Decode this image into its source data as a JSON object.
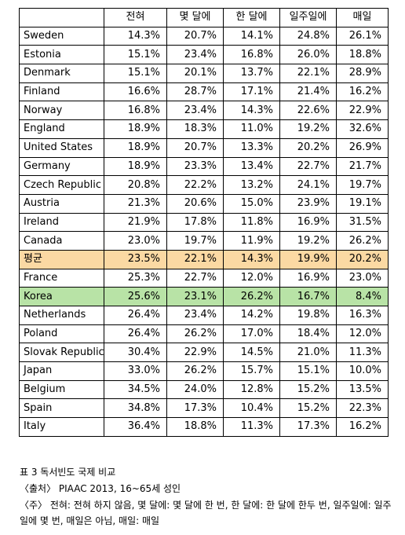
{
  "table": {
    "headers": [
      "",
      "전혀",
      "몇 달에",
      "한 달에",
      "일주일에",
      "매일"
    ],
    "rows": [
      {
        "country": "Sweden",
        "values": [
          "14.3%",
          "20.7%",
          "14.1%",
          "24.8%",
          "26.1%"
        ]
      },
      {
        "country": "Estonia",
        "values": [
          "15.1%",
          "23.4%",
          "16.8%",
          "26.0%",
          "18.8%"
        ]
      },
      {
        "country": "Denmark",
        "values": [
          "15.1%",
          "20.1%",
          "13.7%",
          "22.1%",
          "28.9%"
        ]
      },
      {
        "country": "Finland",
        "values": [
          "16.6%",
          "28.7%",
          "17.1%",
          "21.4%",
          "16.2%"
        ]
      },
      {
        "country": "Norway",
        "values": [
          "16.8%",
          "23.4%",
          "14.3%",
          "22.6%",
          "22.9%"
        ]
      },
      {
        "country": "England",
        "values": [
          "18.9%",
          "18.3%",
          "11.0%",
          "19.2%",
          "32.6%"
        ]
      },
      {
        "country": "United States",
        "values": [
          "18.9%",
          "20.7%",
          "13.3%",
          "20.2%",
          "26.9%"
        ]
      },
      {
        "country": "Germany",
        "values": [
          "18.9%",
          "23.3%",
          "13.4%",
          "22.7%",
          "21.7%"
        ]
      },
      {
        "country": "Czech Republic",
        "values": [
          "20.8%",
          "22.2%",
          "13.2%",
          "24.1%",
          "19.7%"
        ]
      },
      {
        "country": "Austria",
        "values": [
          "21.3%",
          "20.6%",
          "15.0%",
          "23.9%",
          "19.1%"
        ]
      },
      {
        "country": "Ireland",
        "values": [
          "21.9%",
          "17.8%",
          "11.8%",
          "16.9%",
          "31.5%"
        ]
      },
      {
        "country": "Canada",
        "values": [
          "23.0%",
          "19.7%",
          "11.9%",
          "19.2%",
          "26.2%"
        ]
      },
      {
        "country": "평균",
        "values": [
          "23.5%",
          "22.1%",
          "14.3%",
          "19.9%",
          "20.2%"
        ],
        "highlight": "#fbd9a3"
      },
      {
        "country": "France",
        "values": [
          "25.3%",
          "22.7%",
          "12.0%",
          "16.9%",
          "23.0%"
        ]
      },
      {
        "country": "Korea",
        "values": [
          "25.6%",
          "23.1%",
          "26.2%",
          "16.7%",
          "8.4%"
        ],
        "highlight": "#b8e3a6"
      },
      {
        "country": "Netherlands",
        "values": [
          "26.4%",
          "23.4%",
          "14.2%",
          "19.8%",
          "16.3%"
        ]
      },
      {
        "country": "Poland",
        "values": [
          "26.4%",
          "26.2%",
          "17.0%",
          "18.4%",
          "12.0%"
        ]
      },
      {
        "country": "Slovak Republic",
        "values": [
          "30.4%",
          "22.9%",
          "14.5%",
          "21.0%",
          "11.3%"
        ]
      },
      {
        "country": "Japan",
        "values": [
          "33.0%",
          "26.2%",
          "15.7%",
          "15.1%",
          "10.0%"
        ]
      },
      {
        "country": "Belgium",
        "values": [
          "34.5%",
          "24.0%",
          "12.8%",
          "15.2%",
          "13.5%"
        ]
      },
      {
        "country": "Spain",
        "values": [
          "34.8%",
          "17.3%",
          "10.4%",
          "15.2%",
          "22.3%"
        ]
      },
      {
        "country": "Italy",
        "values": [
          "36.4%",
          "18.8%",
          "11.3%",
          "17.3%",
          "16.2%"
        ]
      }
    ]
  },
  "caption": {
    "title": "표 3 독서빈도 국제 비교",
    "source": "〈출처〉 PIAAC 2013, 16~65세 성인",
    "note_line1": "〈주〉 전혀: 전혀 하지 않음, 몇 달에: 몇 달에 한 번, 한 달에: 한 달에 한두 번, 일주일에: 일주",
    "note_line2": "일에 몇 번, 매일은 아님, 매일: 매일"
  }
}
